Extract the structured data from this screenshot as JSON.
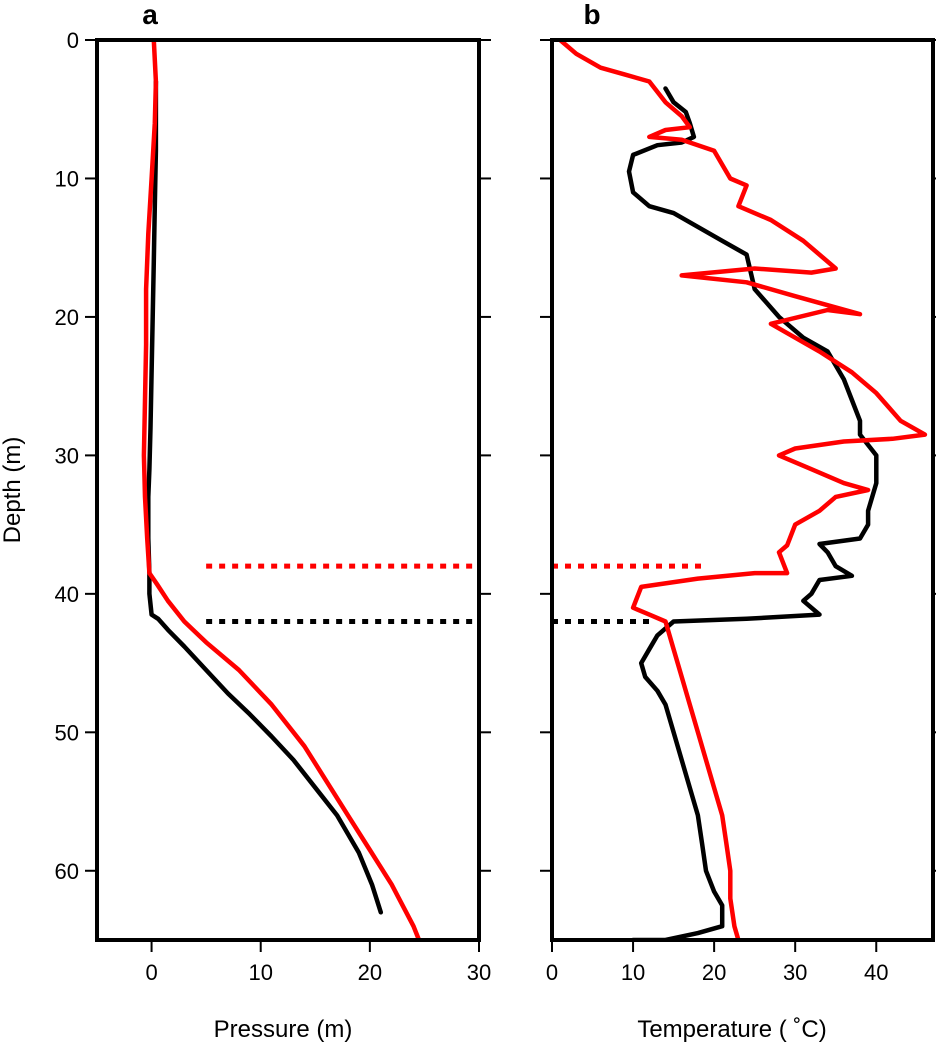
{
  "chart_data": [
    {
      "panel": "a",
      "type": "line",
      "xlabel": "Pressure (m)",
      "ylabel": "Depth (m)",
      "xlim": [
        -5,
        30
      ],
      "ylim": [
        65,
        0
      ],
      "xticks": [
        0,
        10,
        20,
        30
      ],
      "yticks": [
        0,
        10,
        20,
        30,
        40,
        50,
        60
      ],
      "series": [
        {
          "color": "#000000",
          "points": [
            [
              0.4,
              3
            ],
            [
              0.4,
              8
            ],
            [
              0.3,
              12
            ],
            [
              0.2,
              16
            ],
            [
              0.1,
              20
            ],
            [
              0,
              24
            ],
            [
              -0.1,
              28
            ],
            [
              -0.2,
              31
            ],
            [
              -0.3,
              33
            ],
            [
              -0.3,
              36
            ],
            [
              -0.2,
              38.5
            ],
            [
              -0.2,
              40
            ],
            [
              0,
              41.5
            ],
            [
              0.6,
              41.8
            ],
            [
              1.5,
              42.6
            ],
            [
              3,
              43.8
            ],
            [
              5,
              45.5
            ],
            [
              7,
              47.2
            ],
            [
              9,
              48.7
            ],
            [
              11,
              50.3
            ],
            [
              13,
              52
            ],
            [
              15,
              54
            ],
            [
              17,
              56
            ],
            [
              19,
              58.7
            ],
            [
              20.2,
              61
            ],
            [
              21,
              63
            ]
          ]
        },
        {
          "color": "#ff0000",
          "points": [
            [
              0.2,
              0
            ],
            [
              0.4,
              3
            ],
            [
              0.3,
              6
            ],
            [
              0,
              10
            ],
            [
              -0.3,
              14
            ],
            [
              -0.5,
              18
            ],
            [
              -0.5,
              22
            ],
            [
              -0.6,
              26
            ],
            [
              -0.7,
              30
            ],
            [
              -0.6,
              33
            ],
            [
              -0.4,
              36
            ],
            [
              -0.2,
              38.5
            ],
            [
              0.5,
              39.3
            ],
            [
              1.5,
              40.5
            ],
            [
              3,
              42
            ],
            [
              5,
              43.5
            ],
            [
              8,
              45.5
            ],
            [
              11,
              48
            ],
            [
              14,
              51
            ],
            [
              16,
              53.5
            ],
            [
              18,
              56
            ],
            [
              20,
              58.5
            ],
            [
              22,
              61
            ],
            [
              24,
              64
            ],
            [
              24.5,
              65
            ]
          ]
        }
      ],
      "reference_lines": [
        {
          "depth": 38,
          "x_from": 5,
          "x_to": 30,
          "color": "#ff0000",
          "style": "dotted"
        },
        {
          "depth": 42,
          "x_from": 5,
          "x_to": 30,
          "color": "#000000",
          "style": "dotted"
        }
      ]
    },
    {
      "panel": "b",
      "type": "line",
      "xlabel": "Temperature ( ˚C)",
      "ylabel": "",
      "xlim": [
        0,
        47
      ],
      "ylim": [
        65,
        0
      ],
      "xticks": [
        0,
        10,
        20,
        30,
        40
      ],
      "yticks": [
        0,
        10,
        20,
        30,
        40,
        50,
        60
      ],
      "series": [
        {
          "color": "#000000",
          "points": [
            [
              14,
              3.5
            ],
            [
              15,
              4.5
            ],
            [
              16.5,
              5.2
            ],
            [
              17,
              6
            ],
            [
              17.5,
              7
            ],
            [
              16,
              7.4
            ],
            [
              13,
              7.6
            ],
            [
              10,
              8.3
            ],
            [
              9.5,
              9.5
            ],
            [
              10,
              11
            ],
            [
              12,
              12
            ],
            [
              15,
              12.5
            ],
            [
              18,
              13.5
            ],
            [
              21,
              14.5
            ],
            [
              24,
              15.5
            ],
            [
              25,
              18
            ],
            [
              28,
              20
            ],
            [
              31,
              21.5
            ],
            [
              34,
              22.5
            ],
            [
              36,
              24.5
            ],
            [
              37,
              26
            ],
            [
              38,
              27.5
            ],
            [
              38,
              28.5
            ],
            [
              40,
              30
            ],
            [
              40,
              32
            ],
            [
              39,
              34
            ],
            [
              39,
              35
            ],
            [
              38,
              36
            ],
            [
              33,
              36.4
            ],
            [
              34,
              37
            ],
            [
              35,
              38
            ],
            [
              37,
              38.7
            ],
            [
              33,
              39
            ],
            [
              32,
              40
            ],
            [
              31,
              40.5
            ],
            [
              32,
              41
            ],
            [
              33,
              41.5
            ],
            [
              24,
              41.8
            ],
            [
              15,
              42
            ],
            [
              13,
              43
            ],
            [
              12,
              44
            ],
            [
              11,
              45
            ],
            [
              11.5,
              46
            ],
            [
              13,
              47
            ],
            [
              14,
              48
            ],
            [
              15,
              50
            ],
            [
              16,
              52
            ],
            [
              17,
              54
            ],
            [
              18,
              56
            ],
            [
              18.5,
              58
            ],
            [
              19,
              60
            ],
            [
              20,
              61.5
            ],
            [
              21,
              62.5
            ],
            [
              21,
              64
            ],
            [
              18,
              64.5
            ],
            [
              14,
              65
            ],
            [
              10,
              65
            ]
          ]
        },
        {
          "color": "#ff0000",
          "points": [
            [
              1,
              0
            ],
            [
              3,
              1
            ],
            [
              6,
              2
            ],
            [
              9,
              2.5
            ],
            [
              12,
              3
            ],
            [
              14,
              4.5
            ],
            [
              16,
              5.5
            ],
            [
              17,
              6.3
            ],
            [
              14,
              6.5
            ],
            [
              12,
              7
            ],
            [
              16,
              7.2
            ],
            [
              20,
              8
            ],
            [
              22,
              10
            ],
            [
              24,
              10.5
            ],
            [
              23,
              12
            ],
            [
              27,
              13
            ],
            [
              31,
              14.5
            ],
            [
              35,
              16.5
            ],
            [
              32,
              16.8
            ],
            [
              25,
              16.5
            ],
            [
              16,
              17
            ],
            [
              24,
              17.5
            ],
            [
              30,
              18.5
            ],
            [
              38,
              19.8
            ],
            [
              34,
              19.5
            ],
            [
              27,
              20.5
            ],
            [
              30,
              21.5
            ],
            [
              33,
              22.5
            ],
            [
              37,
              24
            ],
            [
              40,
              25.5
            ],
            [
              43,
              27.5
            ],
            [
              46,
              28.5
            ],
            [
              42,
              28.8
            ],
            [
              36,
              29
            ],
            [
              30,
              29.5
            ],
            [
              28,
              30
            ],
            [
              32,
              31
            ],
            [
              36,
              32
            ],
            [
              39,
              32.5
            ],
            [
              35,
              33
            ],
            [
              33,
              34
            ],
            [
              30,
              35
            ],
            [
              29,
              36.5
            ],
            [
              28,
              37
            ],
            [
              29,
              38.5
            ],
            [
              25,
              38.5
            ],
            [
              18,
              38.9
            ],
            [
              11,
              39.5
            ],
            [
              10,
              41
            ],
            [
              12,
              41.5
            ],
            [
              14,
              42
            ],
            [
              15,
              44
            ],
            [
              16,
              46
            ],
            [
              17,
              48
            ],
            [
              18,
              50
            ],
            [
              19,
              52
            ],
            [
              20,
              54
            ],
            [
              21,
              56
            ],
            [
              21.5,
              58
            ],
            [
              22,
              60
            ],
            [
              22,
              62
            ],
            [
              22.5,
              64
            ],
            [
              23,
              65
            ]
          ]
        }
      ],
      "reference_lines": [
        {
          "depth": 38,
          "x_from": 0,
          "x_to": 19,
          "color": "#ff0000",
          "style": "dotted"
        },
        {
          "depth": 42,
          "x_from": 0,
          "x_to": 12,
          "color": "#000000",
          "style": "dotted"
        }
      ]
    }
  ],
  "panel_letters": [
    "a",
    "b"
  ],
  "axis_titles": {
    "left_y": "Depth (m)",
    "a_x": "Pressure (m)",
    "b_x": "Temperature ( ˚C)"
  },
  "grid": false,
  "legend": "none"
}
